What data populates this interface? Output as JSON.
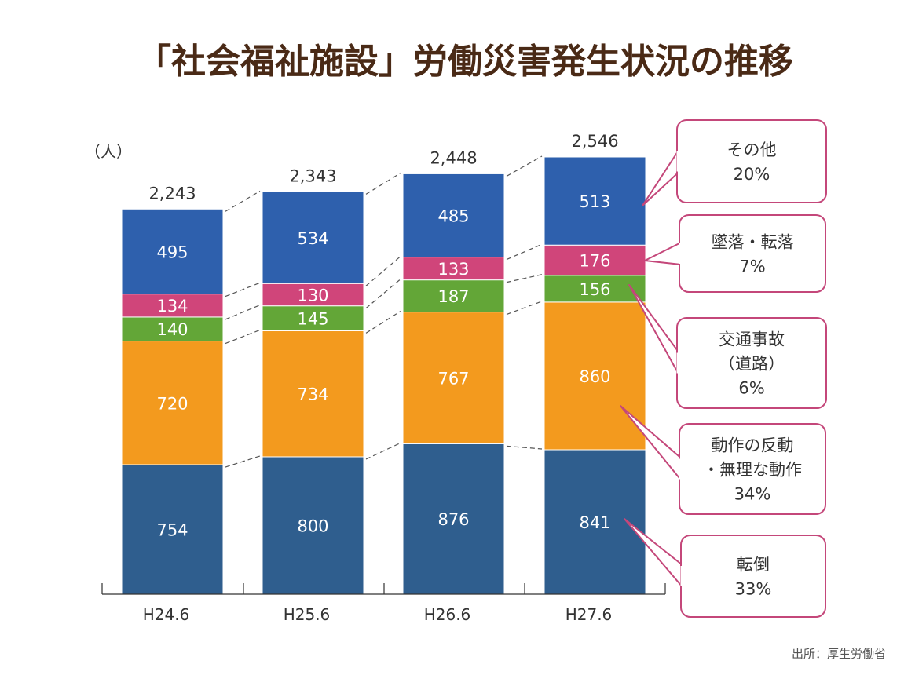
{
  "chart_data": {
    "type": "bar",
    "stacked": true,
    "title": "「社会福祉施設」労働災害発生状況の推移",
    "ylabel": "（人）",
    "categories": [
      "H24.6",
      "H25.6",
      "H26.6",
      "H27.6"
    ],
    "totals": [
      "2,243",
      "2,343",
      "2,448",
      "2,546"
    ],
    "series": [
      {
        "key": "tentou",
        "color": "#2f5e8e",
        "values": [
          754,
          800,
          876,
          841
        ]
      },
      {
        "key": "dousa",
        "color": "#f39a1e",
        "values": [
          720,
          734,
          767,
          860
        ]
      },
      {
        "key": "koutsu",
        "color": "#63a637",
        "values": [
          140,
          145,
          187,
          156
        ]
      },
      {
        "key": "tsuiraku",
        "color": "#d0457a",
        "values": [
          134,
          130,
          133,
          176
        ]
      },
      {
        "key": "sonota",
        "color": "#2e60ad",
        "values": [
          495,
          534,
          485,
          513
        ]
      }
    ],
    "ylim": [
      0,
      2546
    ],
    "grid": false,
    "callouts": [
      {
        "series": "sonota",
        "lines": [
          "その他",
          "20%"
        ]
      },
      {
        "series": "tsuiraku",
        "lines": [
          "墜落・転落",
          "7%"
        ]
      },
      {
        "series": "koutsu",
        "lines": [
          "交通事故",
          "（道路）",
          "6%"
        ]
      },
      {
        "series": "dousa",
        "lines": [
          "動作の反動",
          "・無理な動作",
          "34%"
        ]
      },
      {
        "series": "tentou",
        "lines": [
          "転倒",
          "33%"
        ]
      }
    ],
    "callout_color": "#c4477a",
    "source": "出所：厚生労働省"
  }
}
